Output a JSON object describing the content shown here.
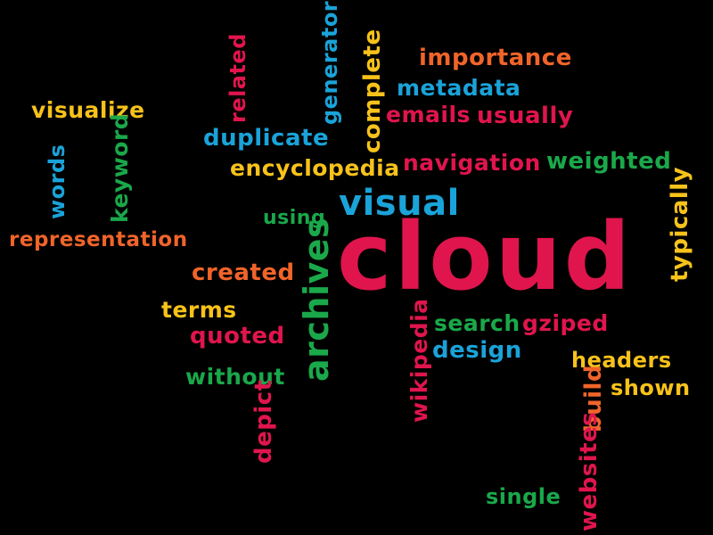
{
  "colors": {
    "background": "#000000",
    "red": "#e0154d",
    "yellow": "#f7c21a",
    "blue": "#1aa3d9",
    "green": "#1aa84a",
    "orange": "#f0642a"
  },
  "words": {
    "cloud": "cloud",
    "importance": "importance",
    "metadata": "metadata",
    "emails": "emails",
    "usually": "usually",
    "visualize": "visualize",
    "related": "related",
    "generator": "generator",
    "complete": "complete",
    "duplicate": "duplicate",
    "encyclopedia": "encyclopedia",
    "navigation": "navigation",
    "weighted": "weighted",
    "words": "words",
    "keyword": "keyword",
    "visual": "visual",
    "using": "using",
    "representation": "representation",
    "typically": "typically",
    "created": "created",
    "archives": "archives",
    "terms": "terms",
    "quoted": "quoted",
    "search": "search",
    "gziped": "gziped",
    "wikipedia": "wikipedia",
    "design": "design",
    "headers": "headers",
    "without": "without",
    "shown": "shown",
    "build": "build",
    "depict": "depict",
    "websites": "websites",
    "single": "single"
  }
}
